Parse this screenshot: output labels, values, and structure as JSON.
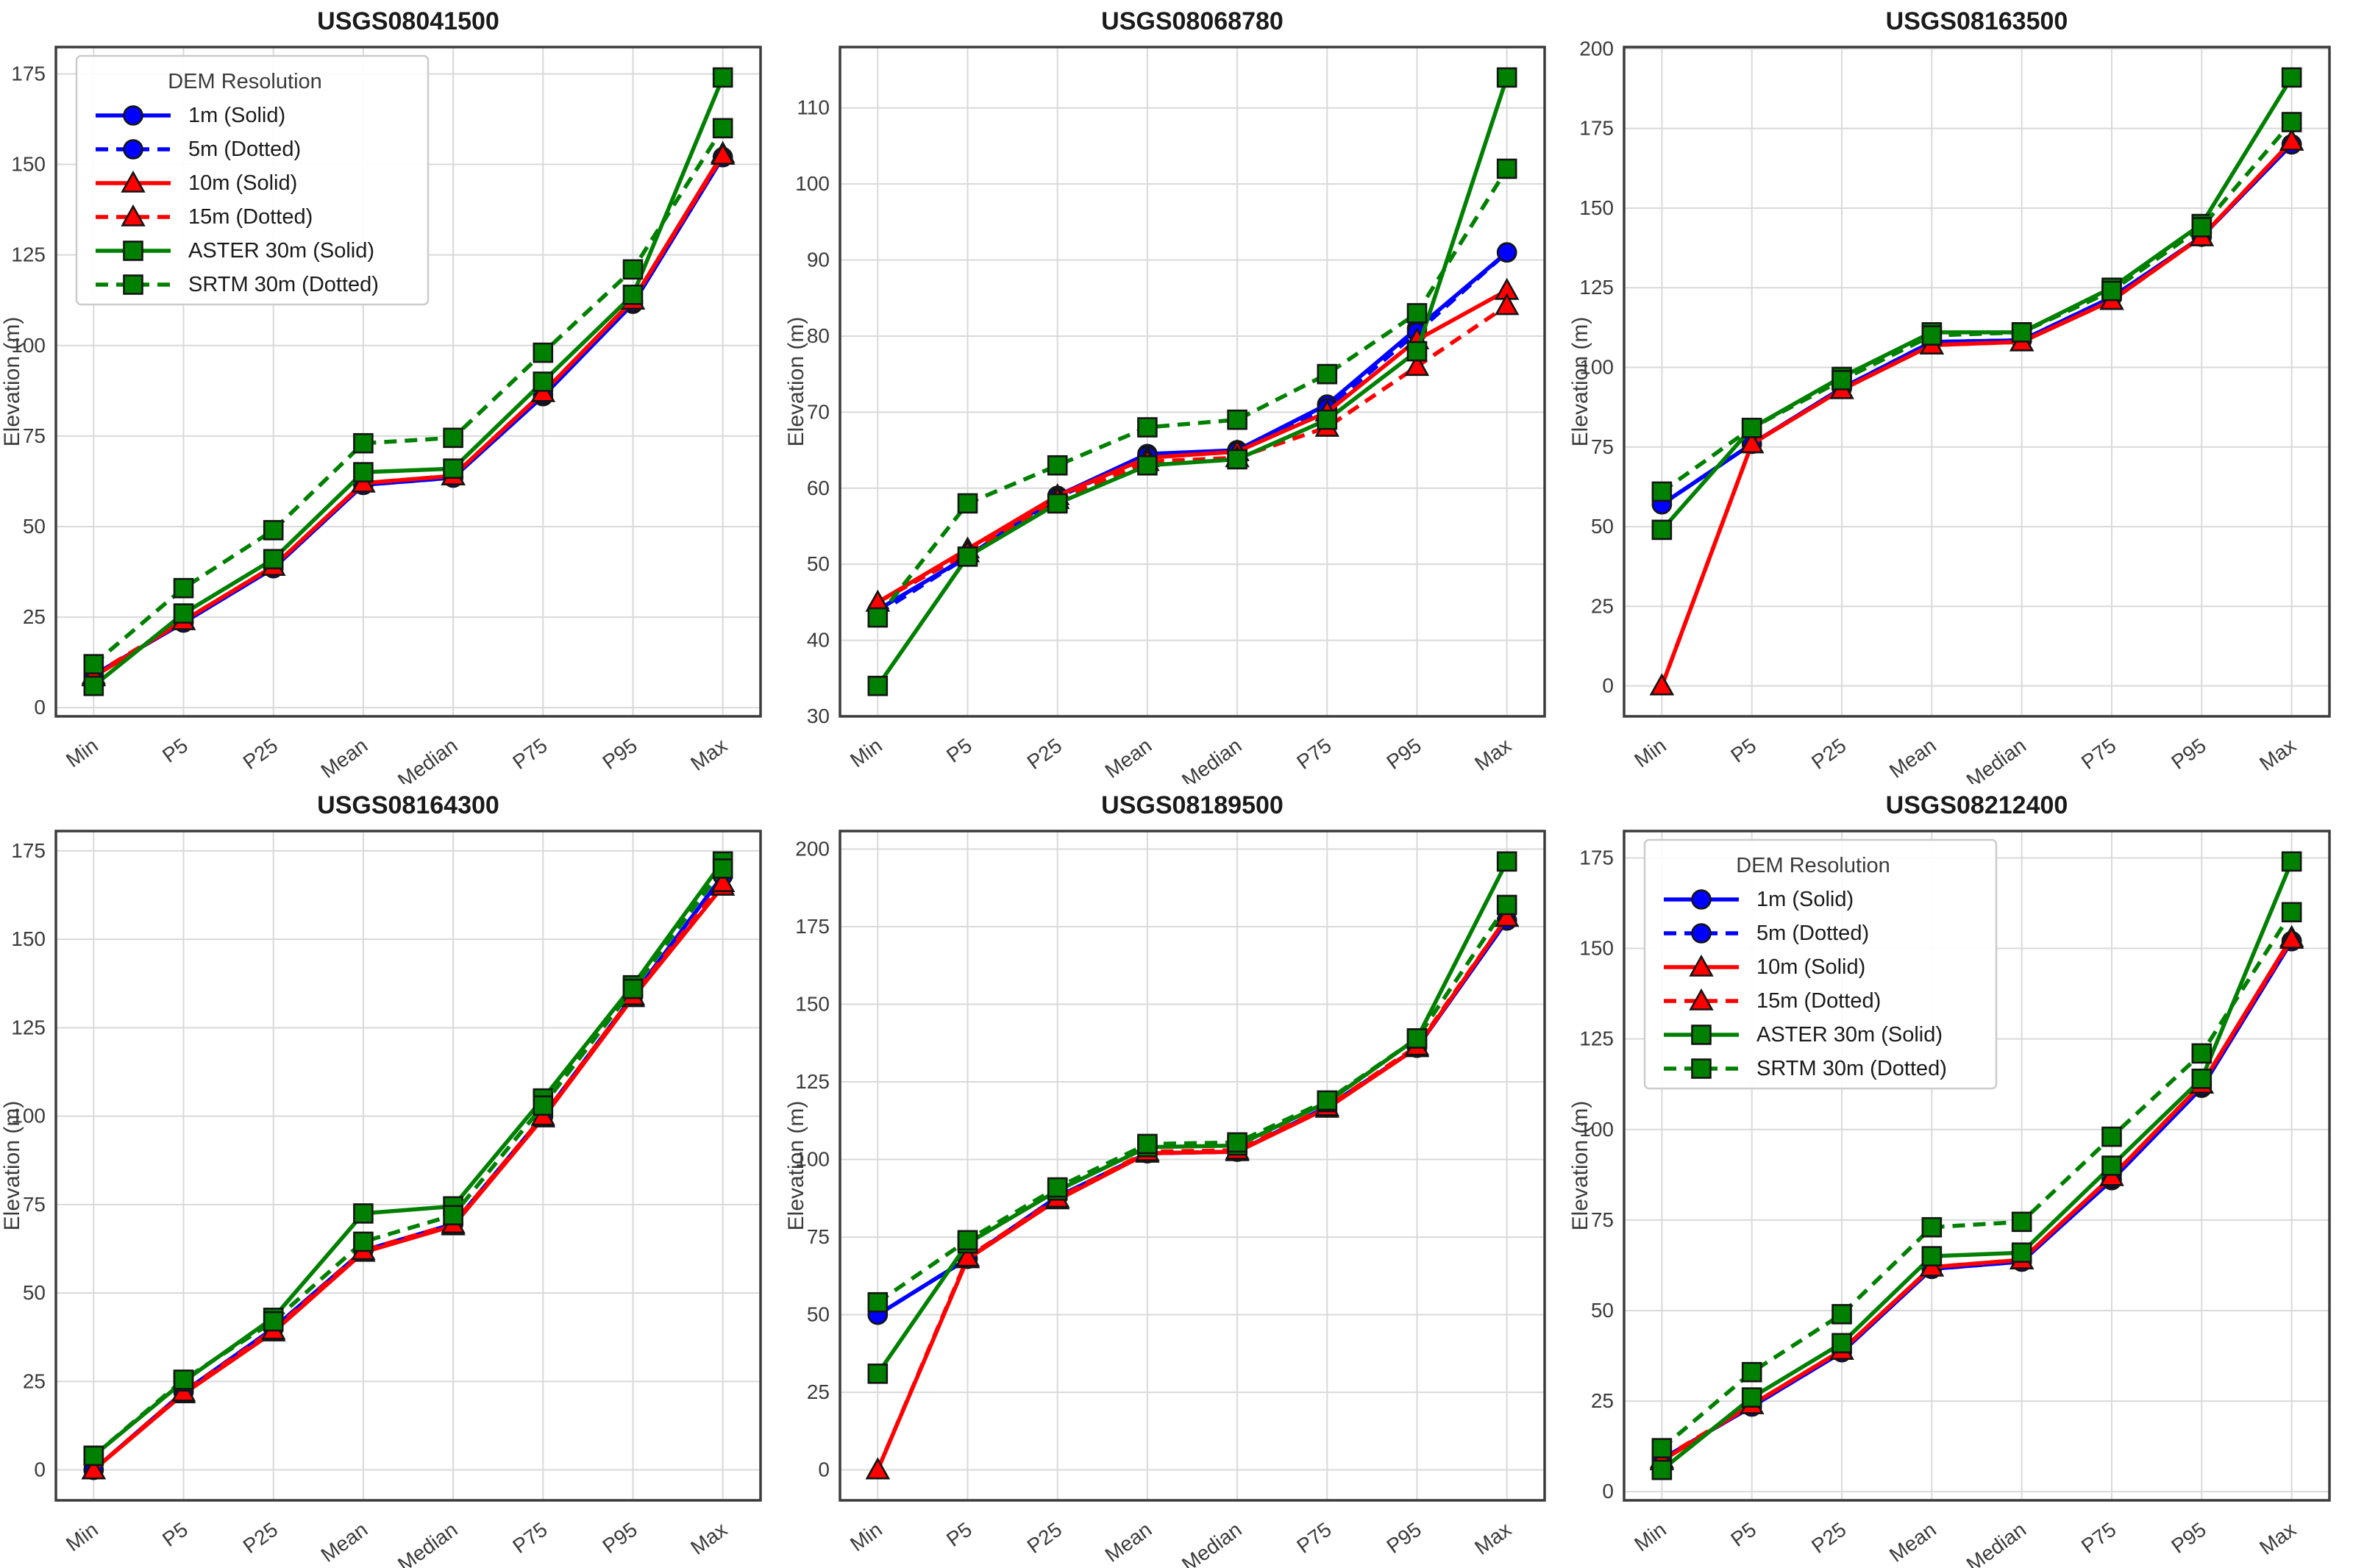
{
  "figure": {
    "background": "#ffffff",
    "grid_color": "#d9d9d9",
    "spine_color": "#3c3c3c",
    "tick_label_color": "#3b3b3b",
    "title_color": "#1a1a1a"
  },
  "legend": {
    "title": "DEM Resolution",
    "entries": [
      {
        "label": "1m (Solid)",
        "color": "#0000ff",
        "dashed": false,
        "marker": "circle"
      },
      {
        "label": "5m (Dotted)",
        "color": "#0000ff",
        "dashed": true,
        "marker": "circle"
      },
      {
        "label": "10m (Solid)",
        "color": "#ff0000",
        "dashed": false,
        "marker": "triangle"
      },
      {
        "label": "15m (Dotted)",
        "color": "#ff0000",
        "dashed": true,
        "marker": "triangle"
      },
      {
        "label": "ASTER 30m (Solid)",
        "color": "#008000",
        "dashed": false,
        "marker": "square"
      },
      {
        "label": "SRTM 30m (Dotted)",
        "color": "#008000",
        "dashed": true,
        "marker": "square"
      }
    ]
  },
  "chart_data": [
    {
      "type": "line",
      "title": "USGS08041500",
      "ylabel": "Elevation (m)",
      "categories": [
        "Min",
        "P5",
        "P25",
        "Mean",
        "Median",
        "P75",
        "P95",
        "Max"
      ],
      "ylim": [
        -2.4,
        182.4
      ],
      "yticks": [
        0,
        25,
        50,
        75,
        100,
        125,
        150,
        175
      ],
      "grid": true,
      "legend_visible": true,
      "series": [
        {
          "name": "1m (Solid)",
          "values": [
            9,
            23.5,
            38.5,
            61.5,
            63.5,
            86,
            111.5,
            152
          ]
        },
        {
          "name": "5m (Dotted)",
          "values": [
            9,
            23.5,
            38.5,
            61.5,
            63.5,
            86.5,
            112,
            152
          ]
        },
        {
          "name": "10m (Solid)",
          "values": [
            8.5,
            24,
            39,
            62,
            64,
            87,
            112.5,
            153
          ]
        },
        {
          "name": "15m (Dotted)",
          "values": [
            9,
            24,
            39,
            62,
            64,
            87,
            112.5,
            152.5
          ]
        },
        {
          "name": "ASTER 30m (Solid)",
          "values": [
            6,
            26,
            41,
            65,
            66,
            90,
            114,
            174
          ]
        },
        {
          "name": "SRTM 30m (Dotted)",
          "values": [
            12,
            33,
            49,
            73,
            74.5,
            98,
            121,
            160
          ]
        }
      ]
    },
    {
      "type": "line",
      "title": "USGS08068780",
      "ylabel": "Elevation (m)",
      "categories": [
        "Min",
        "P5",
        "P25",
        "Mean",
        "Median",
        "P75",
        "P95",
        "Max"
      ],
      "ylim": [
        30,
        118
      ],
      "yticks": [
        30,
        40,
        50,
        60,
        70,
        80,
        90,
        100,
        110
      ],
      "grid": true,
      "legend_visible": false,
      "series": [
        {
          "name": "1m (Solid)",
          "values": [
            44,
            51,
            59,
            64.5,
            65,
            71,
            81,
            91
          ]
        },
        {
          "name": "5m (Dotted)",
          "values": [
            43.5,
            51,
            58.8,
            64.2,
            64.8,
            70.5,
            80.5,
            91
          ]
        },
        {
          "name": "10m (Solid)",
          "values": [
            45,
            52,
            59,
            64,
            64.8,
            70,
            79.5,
            86
          ]
        },
        {
          "name": "15m (Dotted)",
          "values": [
            45,
            51.5,
            58.5,
            63.5,
            64,
            68,
            76,
            84
          ]
        },
        {
          "name": "ASTER 30m (Solid)",
          "values": [
            34,
            51,
            58,
            63,
            63.8,
            69,
            78,
            114
          ]
        },
        {
          "name": "SRTM 30m (Dotted)",
          "values": [
            43,
            58,
            63,
            68,
            69,
            75,
            83,
            102
          ]
        }
      ]
    },
    {
      "type": "line",
      "title": "USGS08163500",
      "ylabel": "Elevation (m)",
      "categories": [
        "Min",
        "P5",
        "P25",
        "Mean",
        "Median",
        "P75",
        "P95",
        "Max"
      ],
      "ylim": [
        -9.55,
        200.55
      ],
      "yticks": [
        0,
        25,
        50,
        75,
        100,
        125,
        150,
        175,
        200
      ],
      "grid": true,
      "legend_visible": false,
      "series": [
        {
          "name": "1m (Solid)",
          "values": [
            57,
            76,
            93.5,
            108,
            108.5,
            122,
            141,
            170
          ]
        },
        {
          "name": "5m (Dotted)",
          "values": [
            57,
            76,
            93.5,
            108,
            108.5,
            122,
            141,
            170
          ]
        },
        {
          "name": "10m (Solid)",
          "values": [
            0,
            76,
            93,
            107,
            108,
            121,
            141,
            171
          ]
        },
        {
          "name": "15m (Dotted)",
          "values": [
            0,
            76,
            93,
            107,
            108,
            121,
            141,
            171
          ]
        },
        {
          "name": "ASTER 30m (Solid)",
          "values": [
            49,
            81,
            97,
            111,
            111,
            125,
            145,
            191
          ]
        },
        {
          "name": "SRTM 30m (Dotted)",
          "values": [
            61,
            81,
            96,
            110,
            111,
            124,
            144,
            177
          ]
        }
      ]
    },
    {
      "type": "line",
      "title": "USGS08164300",
      "ylabel": "Elevation (m)",
      "categories": [
        "Min",
        "P5",
        "P25",
        "Mean",
        "Median",
        "P75",
        "P95",
        "Max"
      ],
      "ylim": [
        -8.6,
        180.6
      ],
      "yticks": [
        0,
        25,
        50,
        75,
        100,
        125,
        150,
        175
      ],
      "grid": true,
      "legend_visible": false,
      "series": [
        {
          "name": "1m (Solid)",
          "values": [
            0,
            22,
            40,
            62,
            69.5,
            100,
            134,
            168
          ]
        },
        {
          "name": "5m (Dotted)",
          "values": [
            0,
            22,
            40,
            62,
            69.5,
            100,
            134,
            168
          ]
        },
        {
          "name": "10m (Solid)",
          "values": [
            0,
            21.5,
            39,
            61.5,
            69,
            99.5,
            133.5,
            165
          ]
        },
        {
          "name": "15m (Dotted)",
          "values": [
            0,
            22,
            39.5,
            62,
            69.5,
            100,
            134,
            166
          ]
        },
        {
          "name": "ASTER 30m (Solid)",
          "values": [
            4,
            25,
            43,
            72.5,
            74.5,
            105,
            137,
            172
          ]
        },
        {
          "name": "SRTM 30m (Dotted)",
          "values": [
            4,
            25.5,
            42,
            64.5,
            72,
            103,
            136,
            170
          ]
        }
      ]
    },
    {
      "type": "line",
      "title": "USGS08189500",
      "ylabel": "Elevation (m)",
      "categories": [
        "Min",
        "P5",
        "P25",
        "Mean",
        "Median",
        "P75",
        "P95",
        "Max"
      ],
      "ylim": [
        -9.8,
        205.8
      ],
      "yticks": [
        0,
        25,
        50,
        75,
        100,
        125,
        150,
        175,
        200
      ],
      "grid": true,
      "legend_visible": false,
      "series": [
        {
          "name": "1m (Solid)",
          "values": [
            50,
            68,
            88,
            102,
            102.5,
            117,
            136,
            177
          ]
        },
        {
          "name": "5m (Dotted)",
          "values": [
            50,
            68,
            88,
            102,
            102.5,
            117,
            136,
            177
          ]
        },
        {
          "name": "10m (Solid)",
          "values": [
            0,
            68,
            87,
            102,
            102.5,
            116.5,
            136,
            178
          ]
        },
        {
          "name": "15m (Dotted)",
          "values": [
            0,
            68.5,
            87.5,
            102.5,
            103,
            117,
            136.5,
            178
          ]
        },
        {
          "name": "ASTER 30m (Solid)",
          "values": [
            31,
            73,
            90,
            104,
            104.5,
            118.5,
            139,
            196
          ]
        },
        {
          "name": "SRTM 30m (Dotted)",
          "values": [
            54,
            74,
            91,
            105,
            105.5,
            119,
            139,
            182
          ]
        }
      ]
    },
    {
      "type": "line",
      "title": "USGS08212400",
      "ylabel": "Elevation (m)",
      "categories": [
        "Min",
        "P5",
        "P25",
        "Mean",
        "Median",
        "P75",
        "P95",
        "Max"
      ],
      "ylim": [
        -2.4,
        182.4
      ],
      "yticks": [
        0,
        25,
        50,
        75,
        100,
        125,
        150,
        175
      ],
      "grid": true,
      "legend_visible": true,
      "series": [
        {
          "name": "1m (Solid)",
          "values": [
            9,
            23.5,
            38.5,
            61.5,
            63.5,
            86,
            111.5,
            152
          ]
        },
        {
          "name": "5m (Dotted)",
          "values": [
            9,
            23.5,
            38.5,
            61.5,
            63.5,
            86.5,
            112,
            152
          ]
        },
        {
          "name": "10m (Solid)",
          "values": [
            8.5,
            24,
            39,
            62,
            64,
            87,
            112.5,
            153
          ]
        },
        {
          "name": "15m (Dotted)",
          "values": [
            9,
            24,
            39,
            62,
            64,
            87,
            112.5,
            152.5
          ]
        },
        {
          "name": "ASTER 30m (Solid)",
          "values": [
            6,
            26,
            41,
            65,
            66,
            90,
            114,
            174
          ]
        },
        {
          "name": "SRTM 30m (Dotted)",
          "values": [
            12,
            33,
            49,
            73,
            74.5,
            98,
            121,
            160
          ]
        }
      ]
    }
  ]
}
